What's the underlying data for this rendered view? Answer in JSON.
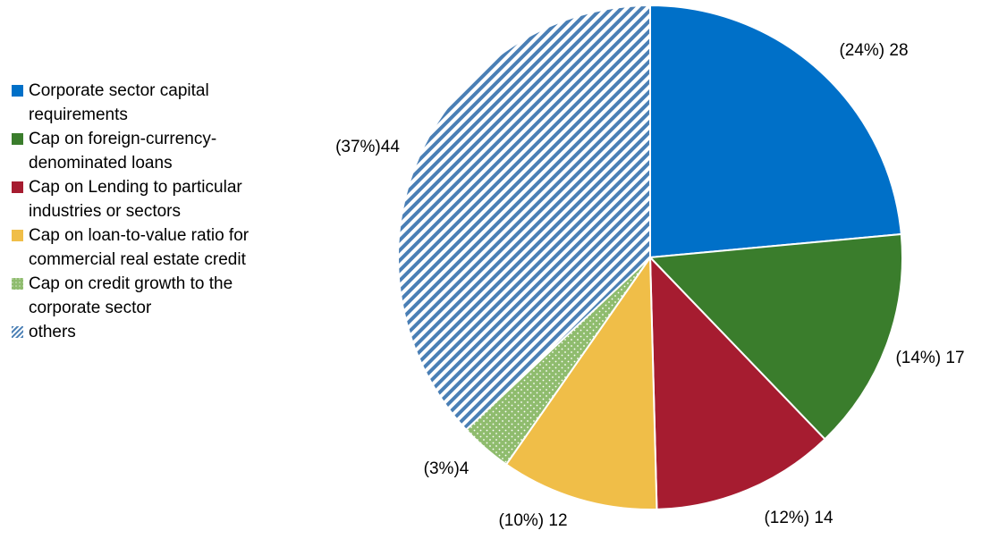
{
  "chart_data": {
    "type": "pie",
    "title": "",
    "slices": [
      {
        "name": "Corporate sector capital requirements",
        "value": 28,
        "percent": 24,
        "label": "(24%) 28",
        "color": "#0070C8",
        "pattern": "solid"
      },
      {
        "name": "Cap on foreign-currency-denominated loans",
        "value": 17,
        "percent": 14,
        "label": "(14%) 17",
        "color": "#3A7D2C",
        "pattern": "solid"
      },
      {
        "name": "Cap on Lending to particular industries or sectors",
        "value": 14,
        "percent": 12,
        "label": "(12%) 14",
        "color": "#A61C30",
        "pattern": "solid"
      },
      {
        "name": "Cap on loan-to-value ratio for commercial real estate credit",
        "value": 12,
        "percent": 10,
        "label": "(10%) 12",
        "color": "#F0BE48",
        "pattern": "solid"
      },
      {
        "name": "Cap on credit growth to the corporate sector",
        "value": 4,
        "percent": 3,
        "label": "(3%)4",
        "color": "#8FBC6E",
        "pattern": "dots"
      },
      {
        "name": "others",
        "value": 44,
        "percent": 37,
        "label": "(37%)44",
        "color": "#4A7FB5",
        "pattern": "stripes"
      }
    ],
    "legend_position": "left",
    "start_angle": "top, clockwise"
  },
  "legend": {
    "items": [
      {
        "lines": [
          "Corporate sector capital",
          "requirements"
        ]
      },
      {
        "lines": [
          "Cap on foreign-currency-",
          "denominated loans"
        ]
      },
      {
        "lines": [
          "Cap on Lending to particular",
          "industries or sectors"
        ]
      },
      {
        "lines": [
          "Cap on loan-to-value ratio for",
          "commercial real estate credit"
        ]
      },
      {
        "lines": [
          "Cap on credit growth to the",
          "corporate sector"
        ]
      },
      {
        "lines": [
          "others"
        ]
      }
    ]
  }
}
